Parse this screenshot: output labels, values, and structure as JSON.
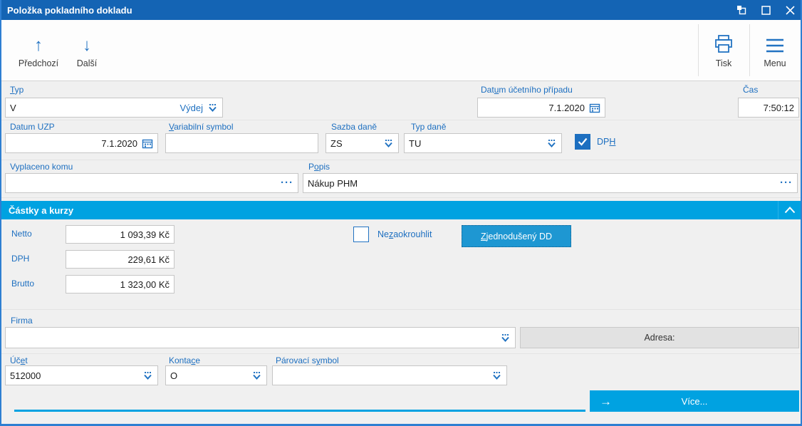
{
  "window": {
    "title": "Položka pokladního dokladu"
  },
  "toolbar": {
    "prev_label": "Předchozí",
    "next_label": "Další",
    "print_label": "Tisk",
    "menu_label": "Menu"
  },
  "icons": {
    "up": "↑",
    "down": "↓",
    "arrow_right": "→",
    "ellipsis": "···"
  },
  "fields": {
    "typ": {
      "label": "Typ",
      "value": "V",
      "display": "Výdej"
    },
    "datum_ucetniho_pripadu": {
      "label": "Datum účetního případu",
      "value": "7.1.2020"
    },
    "cas": {
      "label": "Čas",
      "value": "7:50:12"
    },
    "datum_uzp": {
      "label": "Datum UZP",
      "value": "7.1.2020"
    },
    "variabilni_symbol": {
      "label": "Variabilní symbol",
      "value": ""
    },
    "sazba_dane": {
      "label": "Sazba daně",
      "value": "ZS"
    },
    "typ_dane": {
      "label": "Typ daně",
      "value": "TU"
    },
    "dph_checkbox": {
      "label": "DPH",
      "checked": true
    },
    "vyplaceno_komu": {
      "label": "Vyplaceno komu",
      "value": ""
    },
    "popis": {
      "label": "Popis",
      "value": "Nákup PHM"
    },
    "firma": {
      "label": "Firma",
      "value": ""
    },
    "adresa": {
      "label": "Adresa:"
    },
    "ucet": {
      "label": "Účet",
      "value": "512000"
    },
    "kontace": {
      "label": "Kontace",
      "value": "O"
    },
    "parovaci_symbol": {
      "label": "Párovací symbol",
      "value": ""
    }
  },
  "amounts_section": {
    "title": "Částky a kurzy",
    "netto": {
      "label": "Netto",
      "value": "1 093,39 Kč"
    },
    "dph": {
      "label": "DPH",
      "value": "229,61 Kč"
    },
    "brutto": {
      "label": "Brutto",
      "value": "1 323,00 Kč"
    },
    "nezaokrouhlit": {
      "label": "Nezaokrouhlit",
      "checked": false
    },
    "zjednoduseny_dd": {
      "label": "Zjednodušený DD",
      "active": true
    }
  },
  "footer": {
    "more_label": "Více..."
  },
  "colors": {
    "titlebar_blue": "#1464b4",
    "window_border_blue": "#2e7fd2",
    "label_blue": "#1d6fc0",
    "icon_blue": "#2273c2",
    "accent_cyan": "#00a2e1",
    "pressed_cyan": "#1e97d2",
    "background": "#f0f0f0"
  }
}
